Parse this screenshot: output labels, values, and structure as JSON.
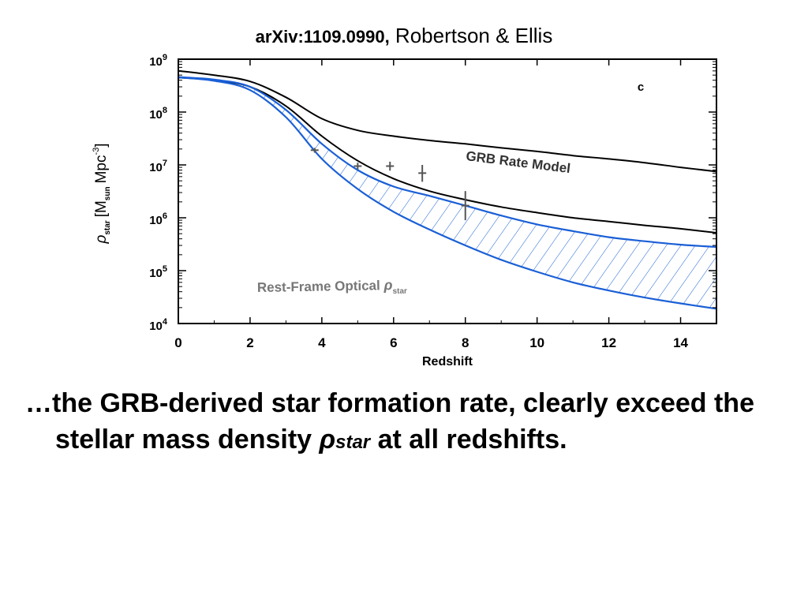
{
  "slide": {
    "title_id": "arXiv:1109.0990,",
    "title_authors": " Robertson & Ellis",
    "caption_part1": "…the GRB-derived star formation rate, clearly exceed the stellar mass density ",
    "caption_symbol": "ρ",
    "caption_subscript": "star",
    "caption_part2": "  at all redshifts."
  },
  "chart_data": {
    "type": "line",
    "xlabel": "Redshift",
    "ylabel": "ρstar [Msun Mpc-3]",
    "ylabel_main": "ρ",
    "ylabel_sub": "star",
    "ylabel_bracket_open": "[M",
    "ylabel_sun": "sun",
    "ylabel_mpc": "Mpc",
    "ylabel_exp": "-3",
    "ylabel_close": "]",
    "panel_label": "c",
    "xlim": [
      0,
      15
    ],
    "ylim": [
      10000,
      1000000000
    ],
    "y_scale": "log",
    "x_ticks": [
      0,
      2,
      4,
      6,
      8,
      10,
      12,
      14
    ],
    "x_tick_labels": [
      "0",
      "2",
      "4",
      "6",
      "8",
      "10",
      "12",
      "14"
    ],
    "y_ticks": [
      10000,
      100000,
      1000000,
      10000000,
      100000000,
      1000000000
    ],
    "y_tick_labels": [
      {
        "base": "10",
        "exp": "4"
      },
      {
        "base": "10",
        "exp": "5"
      },
      {
        "base": "10",
        "exp": "6"
      },
      {
        "base": "10",
        "exp": "7"
      },
      {
        "base": "10",
        "exp": "8"
      },
      {
        "base": "10",
        "exp": "9"
      }
    ],
    "annotations": {
      "grb_model": "GRB Rate Model",
      "optical_text": "Rest-Frame Optical ",
      "optical_rho": "ρ",
      "optical_sub": "star"
    },
    "colors": {
      "grb": "#000000",
      "optical": "#1a5fd6",
      "annotation": "#666666",
      "points": "#555555"
    },
    "series": [
      {
        "id": "grb-upper",
        "color": "#000000",
        "x": [
          0,
          1,
          2,
          3,
          4,
          5,
          6,
          7,
          8,
          9,
          10,
          11,
          12,
          13,
          14,
          15
        ],
        "y": [
          600000000,
          500000000,
          380000000,
          190000000,
          75000000,
          45000000,
          35000000,
          29000000,
          25000000,
          21000000,
          18000000,
          15000000,
          13000000,
          11000000,
          9000000,
          7500000
        ]
      },
      {
        "id": "grb-lower",
        "color": "#000000",
        "x": [
          0,
          1,
          2,
          3,
          4,
          5,
          6,
          7,
          8,
          9,
          10,
          11,
          12,
          13,
          14,
          15
        ],
        "y": [
          450000000,
          400000000,
          300000000,
          130000000,
          35000000,
          12000000,
          5500000,
          3200000,
          2200000,
          1600000,
          1250000,
          1000000,
          850000,
          720000,
          620000,
          520000
        ]
      },
      {
        "id": "optical-upper",
        "color": "#1a5fd6",
        "x": [
          0,
          1,
          2,
          3,
          4,
          5,
          6,
          7,
          8,
          9,
          10,
          11,
          12,
          13,
          14,
          15
        ],
        "y": [
          460000000,
          410000000,
          300000000,
          110000000,
          25000000,
          8000000,
          3900000,
          2600000,
          1700000,
          1100000,
          750000,
          560000,
          430000,
          360000,
          310000,
          280000
        ]
      },
      {
        "id": "optical-lower",
        "color": "#1a5fd6",
        "x": [
          0,
          1,
          2,
          3,
          4,
          5,
          6,
          7,
          8,
          9,
          10,
          11,
          12,
          13,
          14,
          15
        ],
        "y": [
          450000000,
          390000000,
          260000000,
          80000000,
          13000000,
          3500000,
          1300000,
          600000,
          300000,
          160000,
          95000,
          60000,
          42000,
          31000,
          24000,
          19000
        ]
      }
    ],
    "points": [
      {
        "x": 3.8,
        "y": 19000000,
        "err_lo": 17000000,
        "err_hi": 21000000
      },
      {
        "x": 5.0,
        "y": 9500000,
        "err_lo": 8200000,
        "err_hi": 11000000
      },
      {
        "x": 5.9,
        "y": 9500000,
        "err_lo": 7800000,
        "err_hi": 11500000
      },
      {
        "x": 6.8,
        "y": 7000000,
        "err_lo": 4800000,
        "err_hi": 10000000
      },
      {
        "x": 8.0,
        "y": 1700000,
        "err_lo": 900000,
        "err_hi": 3200000
      }
    ]
  }
}
